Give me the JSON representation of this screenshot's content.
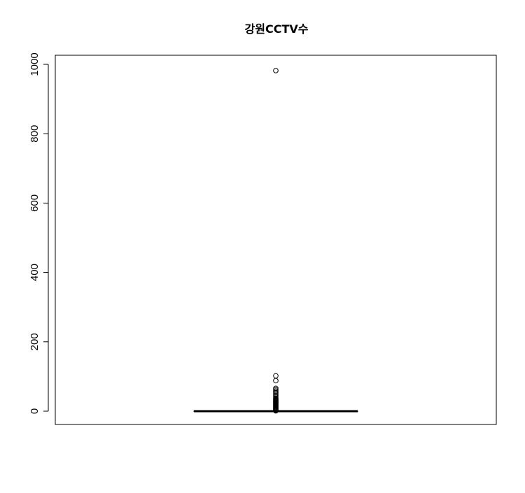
{
  "chart_data": {
    "type": "boxplot",
    "title": "강원CCTV수",
    "xlabel": "",
    "ylabel": "",
    "ylim": [
      0,
      1040
    ],
    "yticks": [
      0,
      200,
      400,
      600,
      800,
      1000
    ],
    "box": {
      "min": 0,
      "q1": 0,
      "median": 0,
      "q3": 0,
      "whisker_high": 0
    },
    "outliers": [
      982,
      102,
      88,
      66,
      62,
      58,
      54,
      50,
      46,
      42,
      38,
      36,
      34,
      32,
      30,
      28,
      26,
      24,
      22,
      20,
      18,
      16,
      14,
      12,
      10,
      8,
      6,
      4,
      3,
      2,
      1
    ],
    "grid": false,
    "legend": "none"
  }
}
